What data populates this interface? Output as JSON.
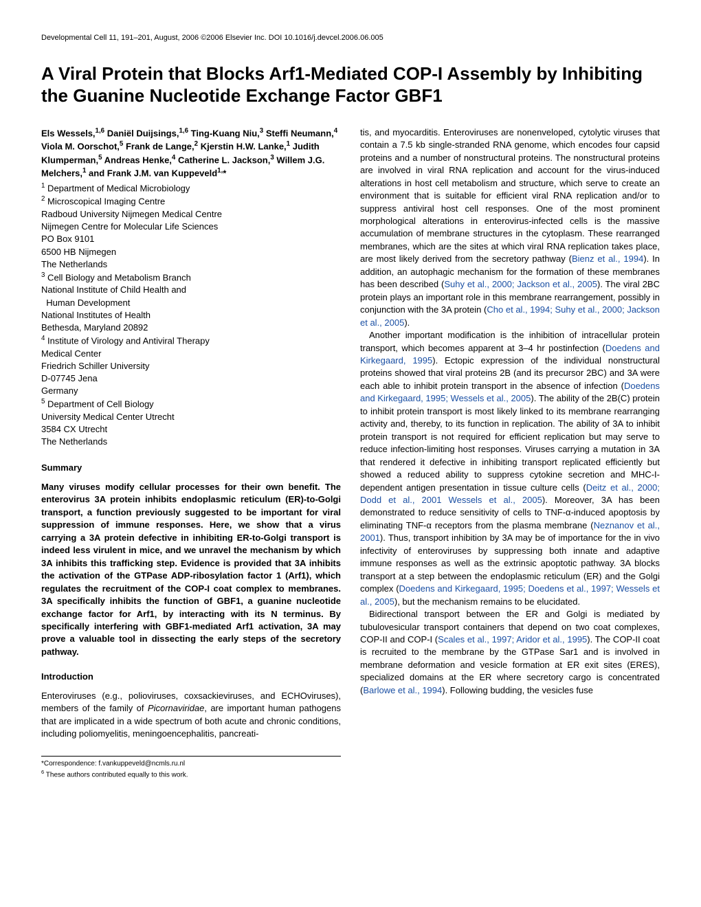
{
  "header": {
    "citation": "Developmental Cell 11, 191–201, August, 2006 ©2006 Elsevier Inc.  DOI 10.1016/j.devcel.2006.06.005"
  },
  "title": "A Viral Protein that Blocks Arf1-Mediated COP-I Assembly by Inhibiting the Guanine Nucleotide Exchange Factor GBF1",
  "authors_html": "Els Wessels,<sup>1,6</sup> Daniël Duijsings,<sup>1,6</sup> Ting-Kuang Niu,<sup>3</sup> Steffi Neumann,<sup>4</sup> Viola M. Oorschot,<sup>5</sup> Frank de Lange,<sup>2</sup> Kjerstin H.W. Lanke,<sup>1</sup> Judith Klumperman,<sup>5</sup> Andreas Henke,<sup>4</sup> Catherine L. Jackson,<sup>3</sup> Willem J.G. Melchers,<sup>1</sup> and Frank J.M. van Kuppeveld<sup>1,</sup>*",
  "affiliations": [
    "<sup>1</sup> Department of Medical Microbiology",
    "<sup>2</sup> Microscopical Imaging Centre",
    "Radboud University Nijmegen Medical Centre",
    "Nijmegen Centre for Molecular Life Sciences",
    "PO Box 9101",
    "6500 HB Nijmegen",
    "The Netherlands",
    "<sup>3</sup> Cell Biology and Metabolism Branch",
    "National Institute of Child Health and",
    "&nbsp;&nbsp;Human Development",
    "National Institutes of Health",
    "Bethesda, Maryland 20892",
    "<sup>4</sup> Institute of Virology and Antiviral Therapy",
    "Medical Center",
    "Friedrich Schiller University",
    "D-07745 Jena",
    "Germany",
    "<sup>5</sup> Department of Cell Biology",
    "University Medical Center Utrecht",
    "3584 CX Utrecht",
    "The Netherlands"
  ],
  "sections": {
    "summary_heading": "Summary",
    "summary_text": "Many viruses modify cellular processes for their own benefit. The enterovirus 3A protein inhibits endoplasmic reticulum (ER)-to-Golgi transport, a function previously suggested to be important for viral suppression of immune responses. Here, we show that a virus carrying a 3A protein defective in inhibiting ER-to-Golgi transport is indeed less virulent in mice, and we unravel the mechanism by which 3A inhibits this trafficking step. Evidence is provided that 3A inhibits the activation of the GTPase ADP-ribosylation factor 1 (Arf1), which regulates the recruitment of the COP-I coat complex to membranes. 3A specifically inhibits the function of GBF1, a guanine nucleotide exchange factor for Arf1, by interacting with its N terminus. By specifically interfering with GBF1-mediated Arf1 activation, 3A may prove a valuable tool in dissecting the early steps of the secretory pathway.",
    "intro_heading": "Introduction",
    "intro_p1": "Enteroviruses (e.g., polioviruses, coxsackieviruses, and ECHOviruses), members of the family of <i>Picornaviridae</i>, are important human pathogens that are implicated in a wide spectrum of both acute and chronic conditions, including poliomyelitis, meningoencephalitis, pancreati-"
  },
  "right_col": {
    "p1": "tis, and myocarditis. Enteroviruses are nonenveloped, cytolytic viruses that contain a 7.5 kb single-stranded RNA genome, which encodes four capsid proteins and a number of nonstructural proteins. The nonstructural proteins are involved in viral RNA replication and account for the virus-induced alterations in host cell metabolism and structure, which serve to create an environment that is suitable for efficient viral RNA replication and/or to suppress antiviral host cell responses. One of the most prominent morphological alterations in enterovirus-infected cells is the massive accumulation of membrane structures in the cytoplasm. These rearranged membranes, which are the sites at which viral RNA replication takes place, are most likely derived from the secretory pathway (<span class=\"cite\">Bienz et al., 1994</span>). In addition, an autophagic mechanism for the formation of these membranes has been described (<span class=\"cite\">Suhy et al., 2000; Jackson et al., 2005</span>). The viral 2BC protein plays an important role in this membrane rearrangement, possibly in conjunction with the 3A protein (<span class=\"cite\">Cho et al., 1994; Suhy et al., 2000; Jackson et al., 2005</span>).",
    "p2": "Another important modification is the inhibition of intracellular protein transport, which becomes apparent at 3–4 hr postinfection (<span class=\"cite\">Doedens and Kirkegaard, 1995</span>). Ectopic expression of the individual nonstructural proteins showed that viral proteins 2B (and its precursor 2BC) and 3A were each able to inhibit protein transport in the absence of infection (<span class=\"cite\">Doedens and Kirkegaard, 1995; Wessels et al., 2005</span>). The ability of the 2B(C) protein to inhibit protein transport is most likely linked to its membrane rearranging activity and, thereby, to its function in replication. The ability of 3A to inhibit protein transport is not required for efficient replication but may serve to reduce infection-limiting host responses. Viruses carrying a mutation in 3A that rendered it defective in inhibiting transport replicated efficiently but showed a reduced ability to suppress cytokine secretion and MHC-I-dependent antigen presentation in tissue culture cells (<span class=\"cite\">Deitz et al., 2000; Dodd et al., 2001 Wessels et al., 2005</span>). Moreover, 3A has been demonstrated to reduce sensitivity of cells to TNF-α-induced apoptosis by eliminating TNF-α receptors from the plasma membrane (<span class=\"cite\">Neznanov et al., 2001</span>). Thus, transport inhibition by 3A may be of importance for the in vivo infectivity of enteroviruses by suppressing both innate and adaptive immune responses as well as the extrinsic apoptotic pathway. 3A blocks transport at a step between the endoplasmic reticulum (ER) and the Golgi complex (<span class=\"cite\">Doedens and Kirkegaard, 1995; Doedens et al., 1997; Wessels et al., 2005</span>), but the mechanism remains to be elucidated.",
    "p3": "Bidirectional transport between the ER and Golgi is mediated by tubulovesicular transport containers that depend on two coat complexes, COP-II and COP-I (<span class=\"cite\">Scales et al., 1997; Aridor et al., 1995</span>). The COP-II coat is recruited to the membrane by the GTPase Sar1 and is involved in membrane deformation and vesicle formation at ER exit sites (ERES), specialized domains at the ER where secretory cargo is concentrated (<span class=\"cite\">Barlowe et al., 1994</span>). Following budding, the vesicles fuse"
  },
  "footnotes": {
    "correspondence": "*Correspondence: f.vankuppeveld@ncmls.ru.nl",
    "equal": "<sup>6</sup> These authors contributed equally to this work."
  }
}
